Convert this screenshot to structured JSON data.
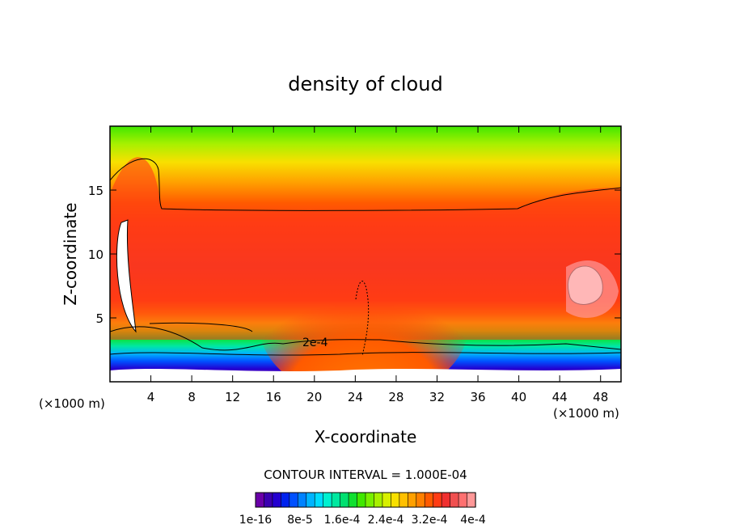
{
  "chart_data": {
    "type": "heatmap",
    "title": "density of cloud",
    "xlabel": "X-coordinate",
    "ylabel": "Z-coordinate",
    "x_unit": "(×1000 m)",
    "y_unit": "(×1000 m)",
    "xlim": [
      0,
      50
    ],
    "ylim": [
      0,
      20
    ],
    "x_ticks": [
      4,
      8,
      12,
      16,
      20,
      24,
      28,
      32,
      36,
      40,
      44,
      48
    ],
    "y_ticks": [
      5,
      10,
      15
    ],
    "contour_interval_text": "CONTOUR INTERVAL = 1.000E-04",
    "contour_label": "2e-4",
    "colorbar": {
      "colors": [
        "#6a00a8",
        "#3b00b0",
        "#2400d0",
        "#0022ee",
        "#0050ff",
        "#0082ff",
        "#00b4ff",
        "#00dcff",
        "#00f0d0",
        "#00e8a0",
        "#00e070",
        "#10e030",
        "#40e800",
        "#78f000",
        "#a8f000",
        "#d8f000",
        "#f8e000",
        "#ffc000",
        "#ffa000",
        "#ff8000",
        "#ff5a00",
        "#ff3c14",
        "#f03030",
        "#f05050",
        "#ff7070",
        "#ff9898"
      ],
      "tick_labels": [
        "1e-16",
        "8e-5",
        "1.6e-4",
        "2.4e-4",
        "3.2e-4",
        "4e-4"
      ]
    }
  }
}
